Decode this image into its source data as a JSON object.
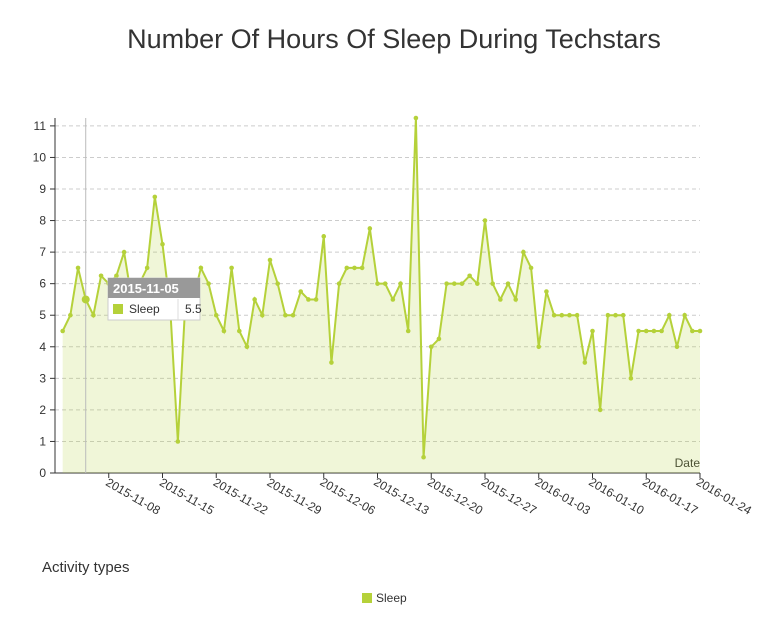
{
  "chart_data": {
    "type": "line",
    "title": "Number Of Hours Of Sleep During Techstars",
    "x_label": "Date",
    "legend_title": "Activity types",
    "x": [
      "2015-11-02",
      "2015-11-03",
      "2015-11-04",
      "2015-11-05",
      "2015-11-06",
      "2015-11-07",
      "2015-11-08",
      "2015-11-09",
      "2015-11-10",
      "2015-11-11",
      "2015-11-12",
      "2015-11-13",
      "2015-11-14",
      "2015-11-15",
      "2015-11-16",
      "2015-11-17",
      "2015-11-18",
      "2015-11-19",
      "2015-11-20",
      "2015-11-21",
      "2015-11-22",
      "2015-11-23",
      "2015-11-24",
      "2015-11-25",
      "2015-11-26",
      "2015-11-27",
      "2015-11-28",
      "2015-11-29",
      "2015-11-30",
      "2015-12-01",
      "2015-12-02",
      "2015-12-03",
      "2015-12-04",
      "2015-12-05",
      "2015-12-06",
      "2015-12-07",
      "2015-12-08",
      "2015-12-09",
      "2015-12-10",
      "2015-12-11",
      "2015-12-12",
      "2015-12-13",
      "2015-12-14",
      "2015-12-15",
      "2015-12-16",
      "2015-12-17",
      "2015-12-18",
      "2015-12-19",
      "2015-12-20",
      "2015-12-21",
      "2015-12-22",
      "2015-12-23",
      "2015-12-24",
      "2015-12-25",
      "2015-12-26",
      "2015-12-27",
      "2015-12-28",
      "2015-12-29",
      "2015-12-30",
      "2015-12-31",
      "2016-01-01",
      "2016-01-02",
      "2016-01-03",
      "2016-01-04",
      "2016-01-05",
      "2016-01-06",
      "2016-01-07",
      "2016-01-08",
      "2016-01-09",
      "2016-01-10",
      "2016-01-11",
      "2016-01-12",
      "2016-01-13",
      "2016-01-14",
      "2016-01-15",
      "2016-01-16",
      "2016-01-17",
      "2016-01-18",
      "2016-01-19",
      "2016-01-20",
      "2016-01-21",
      "2016-01-22",
      "2016-01-23",
      "2016-01-24"
    ],
    "series": [
      {
        "name": "Sleep",
        "color": "#b5d13a",
        "values": [
          4.5,
          5,
          6.5,
          5.5,
          5,
          6.25,
          6,
          6.25,
          7,
          5.5,
          6,
          6.5,
          8.75,
          7.25,
          5.25,
          1,
          5.5,
          5.5,
          6.5,
          6,
          5,
          4.5,
          6.5,
          4.5,
          4,
          5.5,
          5,
          6.75,
          6,
          5,
          5,
          5.75,
          5.5,
          5.5,
          7.5,
          3.5,
          6,
          6.5,
          6.5,
          6.5,
          7.75,
          6,
          6,
          5.5,
          6,
          4.5,
          11.25,
          0.5,
          4,
          4.25,
          6,
          6,
          6,
          6.25,
          6,
          8,
          6,
          5.5,
          6,
          5.5,
          7,
          6.5,
          4,
          5.75,
          5,
          5,
          5,
          5,
          3.5,
          4.5,
          2,
          5,
          5,
          5,
          3,
          4.5,
          4.5,
          4.5,
          4.5,
          5,
          4,
          5,
          4.5,
          4.5
        ]
      }
    ],
    "xlim": [
      "2015-11-01",
      "2016-01-24"
    ],
    "xticks": [
      "2015-11-08",
      "2015-11-15",
      "2015-11-22",
      "2015-11-29",
      "2015-12-06",
      "2015-12-13",
      "2015-12-20",
      "2015-12-27",
      "2016-01-03",
      "2016-01-10",
      "2016-01-17",
      "2016-01-24"
    ],
    "ylim": [
      0,
      11.25
    ],
    "yticks": [
      0,
      1,
      2,
      3,
      4,
      5,
      6,
      7,
      8,
      9,
      10,
      11
    ],
    "grid": true
  }
}
